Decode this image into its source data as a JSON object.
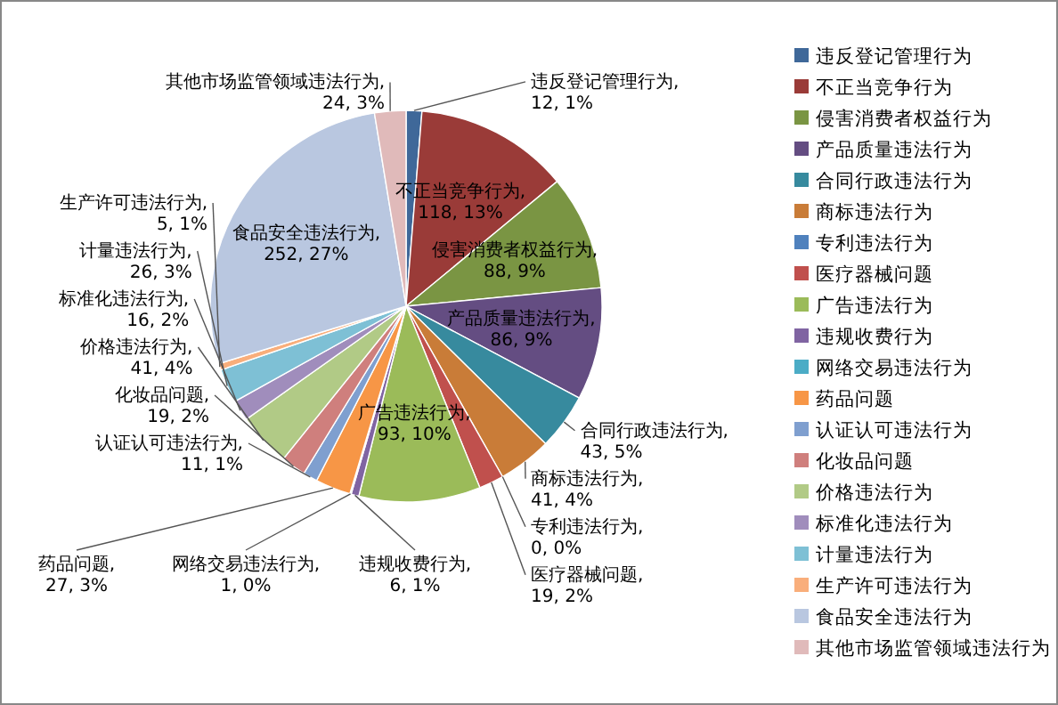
{
  "chart_data": {
    "type": "pie",
    "categories": [
      "违反登记管理行为",
      "不正当竞争行为",
      "侵害消费者权益行为",
      "产品质量违法行为",
      "合同行政违法行为",
      "商标违法行为",
      "专利违法行为",
      "医疗器械问题",
      "广告违法行为",
      "违规收费行为",
      "网络交易违法行为",
      "药品问题",
      "认证认可违法行为",
      "化妆品问题",
      "价格违法行为",
      "标准化违法行为",
      "计量违法行为",
      "生产许可违法行为",
      "食品安全违法行为",
      "其他市场监管领域违法行为"
    ],
    "values": [
      12,
      118,
      88,
      86,
      43,
      41,
      0,
      19,
      93,
      6,
      1,
      27,
      11,
      19,
      41,
      16,
      26,
      5,
      252,
      24
    ],
    "value_labels": [
      "违反登记管理行为, 12, 1%",
      "不正当竞争行为, 118, 13%",
      "侵害消费者权益行为, 88, 9%",
      "产品质量违法行为, 86, 9%",
      "合同行政违法行为, 43, 5%",
      "商标违法行为, 41, 4%",
      "专利违法行为, 0, 0%",
      "医疗器械问题, 19, 2%",
      "广告违法行为, 93, 10%",
      "违规收费行为, 6, 1%",
      "网络交易违法行为, 1, 0%",
      "药品问题, 27, 3%",
      "认证认可违法行为, 11, 1%",
      "化妆品问题, 19, 2%",
      "价格违法行为, 41, 4%",
      "标准化违法行为, 16, 2%",
      "计量违法行为, 26, 3%",
      "生产许可违法行为, 5, 1%",
      "食品安全违法行为, 252, 27%",
      "其他市场监管领域违法行为, 24, 3%"
    ],
    "colors": [
      "#3f6899",
      "#9a3b38",
      "#7a9543",
      "#644d82",
      "#378a9e",
      "#c97c38",
      "#4f81bd",
      "#c0504d",
      "#9bbb59",
      "#8064a2",
      "#4bacc6",
      "#f79646",
      "#7f9fcf",
      "#cf7f7d",
      "#b1ca86",
      "#a08dbc",
      "#7ec0d5",
      "#f9ae7b",
      "#b9c7e0",
      "#e0baba"
    ],
    "legend": "right"
  }
}
